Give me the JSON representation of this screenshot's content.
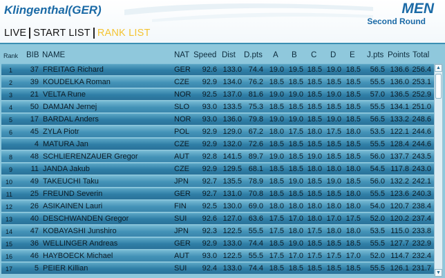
{
  "header": {
    "venue": "Klingenthal(GER)",
    "gender": "MEN",
    "round": "Second Round"
  },
  "nav": {
    "items": [
      {
        "label": "LIVE",
        "active": false
      },
      {
        "label": "START LIST",
        "active": false
      },
      {
        "label": "RANK LIST",
        "active": true
      }
    ]
  },
  "columns": {
    "rank": "Rank",
    "bib": "BIB",
    "name": "NAME",
    "nat": "NAT",
    "speed": "Speed",
    "dist": "Dist",
    "dpts": "D.pts",
    "a": "A",
    "b": "B",
    "c": "C",
    "d": "D",
    "e": "E",
    "jpts": "J.pts",
    "points": "Points",
    "total": "Total"
  },
  "rows": [
    {
      "rank": "1",
      "bib": "37",
      "name": "FREITAG Richard",
      "nat": "GER",
      "speed": "92.6",
      "dist": "133.0",
      "dpts": "74.4",
      "a": "19.0",
      "b": "19.5",
      "c": "18.5",
      "d": "19.0",
      "e": "18.5",
      "jpts": "56.5",
      "points": "136.6",
      "total": "256.4"
    },
    {
      "rank": "2",
      "bib": "39",
      "name": "KOUDELKA Roman",
      "nat": "CZE",
      "speed": "92.9",
      "dist": "134.0",
      "dpts": "76.2",
      "a": "18.5",
      "b": "18.5",
      "c": "18.5",
      "d": "18.5",
      "e": "18.5",
      "jpts": "55.5",
      "points": "136.0",
      "total": "253.1"
    },
    {
      "rank": "3",
      "bib": "21",
      "name": "VELTA Rune",
      "nat": "NOR",
      "speed": "92.5",
      "dist": "137.0",
      "dpts": "81.6",
      "a": "19.0",
      "b": "19.0",
      "c": "18.5",
      "d": "19.0",
      "e": "18.5",
      "jpts": "57.0",
      "points": "136.5",
      "total": "252.9"
    },
    {
      "rank": "4",
      "bib": "50",
      "name": "DAMJAN Jernej",
      "nat": "SLO",
      "speed": "93.0",
      "dist": "133.5",
      "dpts": "75.3",
      "a": "18.5",
      "b": "18.5",
      "c": "18.5",
      "d": "18.5",
      "e": "18.5",
      "jpts": "55.5",
      "points": "134.1",
      "total": "251.0"
    },
    {
      "rank": "5",
      "bib": "17",
      "name": "BARDAL Anders",
      "nat": "NOR",
      "speed": "93.0",
      "dist": "136.0",
      "dpts": "79.8",
      "a": "19.0",
      "b": "19.0",
      "c": "18.5",
      "d": "19.0",
      "e": "18.5",
      "jpts": "56.5",
      "points": "133.2",
      "total": "248.6"
    },
    {
      "rank": "6",
      "bib": "45",
      "name": "ZYLA Piotr",
      "nat": "POL",
      "speed": "92.9",
      "dist": "129.0",
      "dpts": "67.2",
      "a": "18.0",
      "b": "17.5",
      "c": "18.0",
      "d": "17.5",
      "e": "18.0",
      "jpts": "53.5",
      "points": "122.1",
      "total": "244.6"
    },
    {
      "rank": "",
      "bib": "4",
      "name": "MATURA Jan",
      "nat": "CZE",
      "speed": "92.9",
      "dist": "132.0",
      "dpts": "72.6",
      "a": "18.5",
      "b": "18.5",
      "c": "18.5",
      "d": "18.5",
      "e": "18.5",
      "jpts": "55.5",
      "points": "128.4",
      "total": "244.6"
    },
    {
      "rank": "8",
      "bib": "48",
      "name": "SCHLIERENZAUER Gregor",
      "nat": "AUT",
      "speed": "92.8",
      "dist": "141.5",
      "dpts": "89.7",
      "a": "19.0",
      "b": "18.5",
      "c": "19.0",
      "d": "18.5",
      "e": "18.5",
      "jpts": "56.0",
      "points": "137.7",
      "total": "243.5"
    },
    {
      "rank": "9",
      "bib": "11",
      "name": "JANDA Jakub",
      "nat": "CZE",
      "speed": "92.9",
      "dist": "129.5",
      "dpts": "68.1",
      "a": "18.5",
      "b": "18.5",
      "c": "18.0",
      "d": "18.0",
      "e": "18.0",
      "jpts": "54.5",
      "points": "117.8",
      "total": "243.0"
    },
    {
      "rank": "10",
      "bib": "49",
      "name": "TAKEUCHI Taku",
      "nat": "JPN",
      "speed": "92.7",
      "dist": "135.5",
      "dpts": "78.9",
      "a": "18.5",
      "b": "19.0",
      "c": "18.5",
      "d": "19.0",
      "e": "18.5",
      "jpts": "56.0",
      "points": "132.2",
      "total": "242.1"
    },
    {
      "rank": "11",
      "bib": "25",
      "name": "FREUND Severin",
      "nat": "GER",
      "speed": "92.7",
      "dist": "131.0",
      "dpts": "70.8",
      "a": "18.5",
      "b": "18.5",
      "c": "18.5",
      "d": "18.5",
      "e": "18.0",
      "jpts": "55.5",
      "points": "123.6",
      "total": "240.3"
    },
    {
      "rank": "12",
      "bib": "26",
      "name": "ASIKAINEN Lauri",
      "nat": "FIN",
      "speed": "92.5",
      "dist": "130.0",
      "dpts": "69.0",
      "a": "18.0",
      "b": "18.0",
      "c": "18.0",
      "d": "18.0",
      "e": "18.0",
      "jpts": "54.0",
      "points": "120.7",
      "total": "238.4"
    },
    {
      "rank": "13",
      "bib": "40",
      "name": "DESCHWANDEN Gregor",
      "nat": "SUI",
      "speed": "92.6",
      "dist": "127.0",
      "dpts": "63.6",
      "a": "17.5",
      "b": "17.0",
      "c": "18.0",
      "d": "17.0",
      "e": "17.5",
      "jpts": "52.0",
      "points": "120.2",
      "total": "237.4"
    },
    {
      "rank": "14",
      "bib": "47",
      "name": "KOBAYASHI Junshiro",
      "nat": "JPN",
      "speed": "92.3",
      "dist": "122.5",
      "dpts": "55.5",
      "a": "17.5",
      "b": "18.0",
      "c": "17.5",
      "d": "18.0",
      "e": "18.0",
      "jpts": "53.5",
      "points": "115.0",
      "total": "233.8"
    },
    {
      "rank": "15",
      "bib": "36",
      "name": "WELLINGER Andreas",
      "nat": "GER",
      "speed": "92.9",
      "dist": "133.0",
      "dpts": "74.4",
      "a": "18.5",
      "b": "19.0",
      "c": "18.5",
      "d": "18.5",
      "e": "18.5",
      "jpts": "55.5",
      "points": "127.7",
      "total": "232.9"
    },
    {
      "rank": "16",
      "bib": "46",
      "name": "HAYBOECK Michael",
      "nat": "AUT",
      "speed": "93.0",
      "dist": "122.5",
      "dpts": "55.5",
      "a": "17.5",
      "b": "17.0",
      "c": "17.5",
      "d": "17.5",
      "e": "17.0",
      "jpts": "52.0",
      "points": "114.7",
      "total": "232.4"
    },
    {
      "rank": "17",
      "bib": "5",
      "name": "PEIER Killian",
      "nat": "SUI",
      "speed": "92.4",
      "dist": "133.0",
      "dpts": "74.4",
      "a": "18.5",
      "b": "18.5",
      "c": "18.5",
      "d": "18.5",
      "e": "18.5",
      "jpts": "55.5",
      "points": "126.1",
      "total": "231.7"
    }
  ],
  "icons": {
    "scroll_up": "scroll-up-icon",
    "scroll_down": "scroll-down-icon"
  },
  "colors": {
    "brand_blue": "#1b6aa6",
    "active_tab": "#f4c431",
    "table_bg": "#8fc8dc",
    "row_dark": "#2f7ea6"
  }
}
